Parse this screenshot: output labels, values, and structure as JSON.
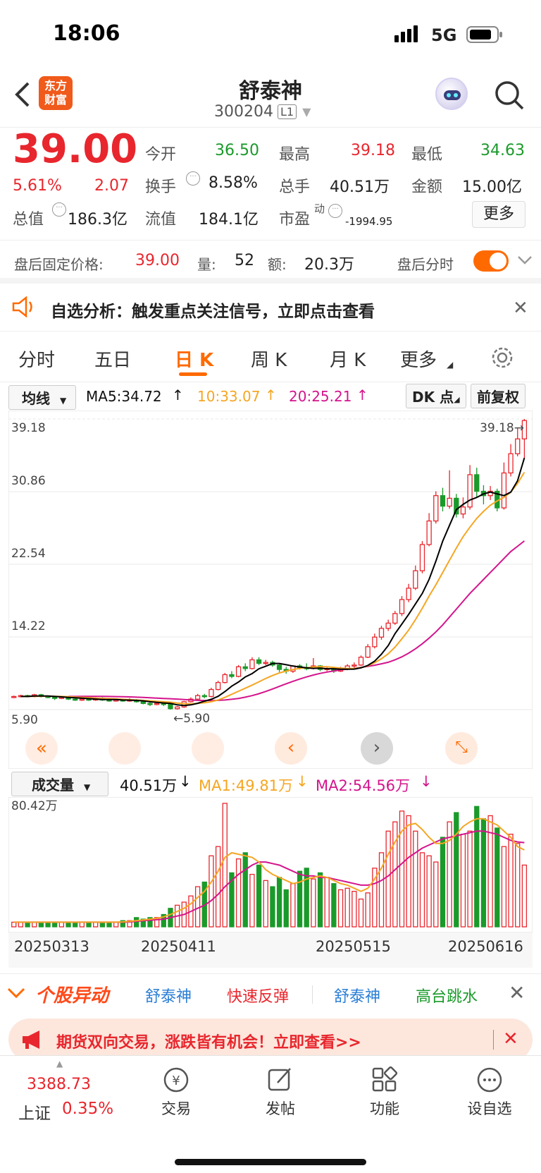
{
  "status": {
    "time": "18:06",
    "network": "5G"
  },
  "header": {
    "title": "舒泰神",
    "code": "300204",
    "level": "L1",
    "logo_text": "东方\n财富"
  },
  "quote": {
    "price": "39.00",
    "pct": "5.61%",
    "chg": "2.07",
    "open_label": "今开",
    "open": "36.50",
    "high_label": "最高",
    "high": "39.18",
    "low_label": "最低",
    "low": "34.63",
    "turnover_label": "换手",
    "turnover": "8.58%",
    "vol_label": "总手",
    "vol": "40.51万",
    "amt_label": "金额",
    "amt": "15.00亿",
    "mcap_label": "总值",
    "mcap": "186.3亿",
    "float_label": "流值",
    "float": "184.1亿",
    "pe_label": "市盈",
    "pe_sup": "动",
    "pe": "-1994.95",
    "more": "更多"
  },
  "afterhours": {
    "label": "盘后固定价格:",
    "price": "39.00",
    "vol_label": "量:",
    "vol": "52",
    "amt_label": "额:",
    "amt": "20.3万",
    "toggle_label": "盘后分时",
    "toggle_on": true
  },
  "notice": {
    "text": "自选分析：触发重点关注信号，立即点击查看"
  },
  "tabs": [
    {
      "label": "分时"
    },
    {
      "label": "五日"
    },
    {
      "label": "日 K",
      "active": true
    },
    {
      "label": "周 K"
    },
    {
      "label": "月 K"
    },
    {
      "label": "更多"
    }
  ],
  "ma_bar": {
    "selector": "均线",
    "ma5": "MA5:34.72",
    "ma10": "10:33.07",
    "ma20": "20:25.21",
    "dk": "DK 点",
    "fq": "前复权"
  },
  "kline": {
    "y_labels": [
      "39.18",
      "30.86",
      "22.54",
      "14.22",
      "5.90"
    ],
    "high_mark": "39.18",
    "low_mark": "5.90"
  },
  "vol_bar": {
    "selector": "成交量",
    "vol": "40.51万",
    "ma1": "MA1:49.81万",
    "ma2": "MA2:54.56万",
    "max": "80.42万"
  },
  "dates": [
    "20250313",
    "20250411",
    "20250515",
    "20250616"
  ],
  "movers": {
    "label": "个股异动",
    "items": [
      {
        "name": "舒泰神",
        "tag": "快速反弹"
      },
      {
        "name": "舒泰神",
        "tag": "高台跳水"
      }
    ]
  },
  "ad": {
    "text": "期货双向交易，涨跌皆有机会！立即查看>>"
  },
  "bottom": {
    "index_value": "3388.73",
    "index_name": "上证",
    "index_pct": "0.35%",
    "items": [
      {
        "label": "交易",
        "icon": "yen-icon"
      },
      {
        "label": "发帖",
        "icon": "edit-icon"
      },
      {
        "label": "功能",
        "icon": "grid-icon"
      },
      {
        "label": "设自选",
        "icon": "more-icon"
      }
    ]
  },
  "colors": {
    "up": "#e8262d",
    "down": "#1a9a2a",
    "accent": "#ff6a00",
    "ma5": "#000000",
    "ma10": "#f5a623",
    "ma20": "#d4148c"
  },
  "chart_data": {
    "type": "candlestick",
    "ylim": [
      5.9,
      39.18
    ],
    "candles": [
      {
        "o": 7.3,
        "c": 7.4,
        "h": 7.5,
        "l": 7.2
      },
      {
        "o": 7.4,
        "c": 7.5,
        "h": 7.6,
        "l": 7.3
      },
      {
        "o": 7.5,
        "c": 7.4,
        "h": 7.6,
        "l": 7.3
      },
      {
        "o": 7.4,
        "c": 7.6,
        "h": 7.7,
        "l": 7.3
      },
      {
        "o": 7.6,
        "c": 7.4,
        "h": 7.7,
        "l": 7.3
      },
      {
        "o": 7.4,
        "c": 7.3,
        "h": 7.5,
        "l": 7.2
      },
      {
        "o": 7.3,
        "c": 7.2,
        "h": 7.4,
        "l": 7.0
      },
      {
        "o": 7.2,
        "c": 7.3,
        "h": 7.4,
        "l": 7.1
      },
      {
        "o": 7.3,
        "c": 7.1,
        "h": 7.4,
        "l": 7.0
      },
      {
        "o": 7.1,
        "c": 7.0,
        "h": 7.2,
        "l": 6.9
      },
      {
        "o": 7.0,
        "c": 7.1,
        "h": 7.2,
        "l": 6.9
      },
      {
        "o": 7.1,
        "c": 7.0,
        "h": 7.2,
        "l": 6.9
      },
      {
        "o": 7.0,
        "c": 7.2,
        "h": 7.3,
        "l": 6.9
      },
      {
        "o": 7.2,
        "c": 7.0,
        "h": 7.3,
        "l": 6.9
      },
      {
        "o": 7.0,
        "c": 6.9,
        "h": 7.1,
        "l": 6.8
      },
      {
        "o": 6.9,
        "c": 7.0,
        "h": 7.1,
        "l": 6.8
      },
      {
        "o": 7.0,
        "c": 6.9,
        "h": 7.1,
        "l": 6.8
      },
      {
        "o": 6.9,
        "c": 7.0,
        "h": 7.2,
        "l": 6.8
      },
      {
        "o": 7.0,
        "c": 6.8,
        "h": 7.1,
        "l": 6.7
      },
      {
        "o": 6.8,
        "c": 6.6,
        "h": 6.9,
        "l": 6.5
      },
      {
        "o": 6.6,
        "c": 6.5,
        "h": 6.8,
        "l": 6.3
      },
      {
        "o": 6.5,
        "c": 6.6,
        "h": 6.7,
        "l": 6.4
      },
      {
        "o": 6.6,
        "c": 6.5,
        "h": 6.7,
        "l": 6.3
      },
      {
        "o": 6.6,
        "c": 6.0,
        "h": 6.7,
        "l": 5.9
      },
      {
        "o": 6.0,
        "c": 6.2,
        "h": 6.3,
        "l": 5.9
      },
      {
        "o": 6.2,
        "c": 6.8,
        "h": 6.9,
        "l": 6.1
      },
      {
        "o": 6.8,
        "c": 7.1,
        "h": 7.3,
        "l": 6.7
      },
      {
        "o": 7.1,
        "c": 7.5,
        "h": 7.7,
        "l": 7.0
      },
      {
        "o": 7.5,
        "c": 7.4,
        "h": 7.7,
        "l": 7.2
      },
      {
        "o": 7.4,
        "c": 8.2,
        "h": 8.4,
        "l": 7.3
      },
      {
        "o": 8.2,
        "c": 9.0,
        "h": 9.2,
        "l": 8.1
      },
      {
        "o": 9.0,
        "c": 9.9,
        "h": 10.1,
        "l": 8.9
      },
      {
        "o": 9.9,
        "c": 9.7,
        "h": 10.3,
        "l": 9.5
      },
      {
        "o": 9.7,
        "c": 10.8,
        "h": 11.0,
        "l": 9.6
      },
      {
        "o": 10.8,
        "c": 10.6,
        "h": 11.2,
        "l": 10.3
      },
      {
        "o": 10.6,
        "c": 11.6,
        "h": 11.9,
        "l": 10.5
      },
      {
        "o": 11.6,
        "c": 11.2,
        "h": 11.9,
        "l": 11.0
      },
      {
        "o": 11.2,
        "c": 11.3,
        "h": 11.6,
        "l": 11.0
      },
      {
        "o": 11.3,
        "c": 11.0,
        "h": 11.5,
        "l": 10.8
      },
      {
        "o": 11.0,
        "c": 10.5,
        "h": 11.1,
        "l": 10.2
      },
      {
        "o": 10.5,
        "c": 10.3,
        "h": 10.8,
        "l": 10.0
      },
      {
        "o": 10.3,
        "c": 10.9,
        "h": 11.0,
        "l": 10.1
      },
      {
        "o": 10.9,
        "c": 10.7,
        "h": 11.1,
        "l": 10.5
      },
      {
        "o": 10.7,
        "c": 10.6,
        "h": 11.2,
        "l": 10.4
      },
      {
        "o": 10.6,
        "c": 10.9,
        "h": 11.8,
        "l": 10.5
      },
      {
        "o": 10.9,
        "c": 10.5,
        "h": 11.0,
        "l": 10.3
      },
      {
        "o": 10.5,
        "c": 10.6,
        "h": 10.8,
        "l": 10.3
      },
      {
        "o": 10.6,
        "c": 10.3,
        "h": 10.8,
        "l": 10.1
      },
      {
        "o": 10.3,
        "c": 10.6,
        "h": 10.8,
        "l": 10.2
      },
      {
        "o": 10.6,
        "c": 10.9,
        "h": 11.1,
        "l": 10.4
      },
      {
        "o": 10.9,
        "c": 11.0,
        "h": 11.3,
        "l": 10.7
      },
      {
        "o": 11.0,
        "c": 11.9,
        "h": 12.1,
        "l": 10.9
      },
      {
        "o": 11.9,
        "c": 13.1,
        "h": 13.4,
        "l": 11.8
      },
      {
        "o": 13.1,
        "c": 14.2,
        "h": 14.6,
        "l": 12.9
      },
      {
        "o": 14.2,
        "c": 15.2,
        "h": 15.5,
        "l": 13.9
      },
      {
        "o": 15.2,
        "c": 15.8,
        "h": 16.2,
        "l": 14.9
      },
      {
        "o": 15.8,
        "c": 16.9,
        "h": 17.2,
        "l": 15.6
      },
      {
        "o": 16.9,
        "c": 18.5,
        "h": 18.9,
        "l": 16.6
      },
      {
        "o": 18.5,
        "c": 19.8,
        "h": 20.3,
        "l": 18.2
      },
      {
        "o": 19.8,
        "c": 21.8,
        "h": 22.4,
        "l": 19.6
      },
      {
        "o": 21.8,
        "c": 24.8,
        "h": 25.2,
        "l": 21.5
      },
      {
        "o": 24.8,
        "c": 27.5,
        "h": 28.4,
        "l": 24.6
      },
      {
        "o": 27.5,
        "c": 30.4,
        "h": 30.9,
        "l": 27.2
      },
      {
        "o": 30.4,
        "c": 29.2,
        "h": 31.3,
        "l": 28.6
      },
      {
        "o": 29.2,
        "c": 30.1,
        "h": 33.3,
        "l": 28.9
      },
      {
        "o": 30.1,
        "c": 28.3,
        "h": 30.6,
        "l": 27.9
      },
      {
        "o": 28.3,
        "c": 29.1,
        "h": 30.2,
        "l": 27.8
      },
      {
        "o": 29.1,
        "c": 32.8,
        "h": 33.9,
        "l": 28.8
      },
      {
        "o": 32.8,
        "c": 30.9,
        "h": 33.6,
        "l": 30.2
      },
      {
        "o": 30.9,
        "c": 30.4,
        "h": 31.6,
        "l": 29.4
      },
      {
        "o": 30.4,
        "c": 30.9,
        "h": 31.5,
        "l": 29.9
      },
      {
        "o": 30.9,
        "c": 29.0,
        "h": 31.2,
        "l": 28.6
      },
      {
        "o": 29.0,
        "c": 33.0,
        "h": 34.2,
        "l": 28.8
      },
      {
        "o": 33.0,
        "c": 35.2,
        "h": 36.3,
        "l": 32.6
      },
      {
        "o": 35.2,
        "c": 36.9,
        "h": 38.1,
        "l": 34.9
      },
      {
        "o": 36.9,
        "c": 39.0,
        "h": 39.18,
        "l": 34.63
      }
    ],
    "volumes": [
      3,
      3,
      3,
      3,
      2.5,
      3,
      3,
      3,
      2.5,
      3,
      3,
      3,
      3,
      3,
      3,
      3,
      4,
      4,
      6,
      5,
      6,
      6,
      8,
      12,
      14,
      16,
      20,
      26,
      29,
      46,
      52,
      80,
      35,
      44,
      48,
      34,
      40,
      30,
      26,
      32,
      24,
      28,
      36,
      38,
      31,
      35,
      32,
      28,
      24,
      25,
      23,
      18,
      22,
      38,
      48,
      62,
      68,
      75,
      72,
      62,
      48,
      46,
      42,
      58,
      68,
      74,
      60,
      62,
      78,
      70,
      72,
      64,
      52,
      60,
      54,
      40
    ],
    "vol_colors": "up-red-down-green",
    "ma5_line": [
      7.4,
      7.4,
      7.45,
      7.45,
      7.45,
      7.4,
      7.35,
      7.3,
      7.25,
      7.2,
      7.15,
      7.1,
      7.05,
      7.05,
      7.05,
      7.0,
      6.98,
      6.95,
      6.9,
      6.8,
      6.72,
      6.66,
      6.6,
      6.44,
      6.36,
      6.44,
      6.62,
      6.86,
      7.08,
      7.42,
      7.96,
      8.58,
      9.06,
      9.64,
      10.02,
      10.58,
      10.86,
      11.18,
      11.18,
      11.04,
      10.88,
      10.78,
      10.68,
      10.62,
      10.64,
      10.58,
      10.58,
      10.52,
      10.52,
      10.54,
      10.68,
      10.96,
      11.44,
      12.24,
      13.24,
      14.6,
      15.7,
      16.8,
      18.0,
      19.2,
      20.8,
      22.9,
      25.2,
      27.0,
      28.8,
      29.4,
      29.9,
      30.2,
      30.6,
      30.8,
      30.6,
      30.4,
      30.8,
      32.1,
      34.72
    ],
    "ma10_line": [
      7.4,
      7.4,
      7.42,
      7.43,
      7.44,
      7.42,
      7.4,
      7.37,
      7.33,
      7.3,
      7.27,
      7.22,
      7.18,
      7.15,
      7.12,
      7.08,
      7.04,
      7.0,
      6.95,
      6.9,
      6.85,
      6.8,
      6.75,
      6.65,
      6.58,
      6.55,
      6.6,
      6.68,
      6.8,
      7.0,
      7.3,
      7.65,
      8.0,
      8.35,
      8.7,
      9.08,
      9.46,
      9.8,
      10.1,
      10.3,
      10.5,
      10.62,
      10.7,
      10.78,
      10.82,
      10.8,
      10.72,
      10.66,
      10.6,
      10.6,
      10.7,
      10.92,
      11.26,
      11.72,
      12.3,
      13.06,
      14.0,
      15.0,
      16.2,
      17.5,
      18.9,
      20.2,
      21.6,
      23.0,
      24.4,
      25.7,
      26.8,
      27.8,
      28.6,
      29.3,
      29.8,
      30.2,
      30.8,
      31.8,
      33.07
    ],
    "ma20_line": [
      7.4,
      7.4,
      7.41,
      7.41,
      7.42,
      7.41,
      7.4,
      7.39,
      7.37,
      7.35,
      7.32,
      7.29,
      7.26,
      7.22,
      7.18,
      7.14,
      7.1,
      7.05,
      7.0,
      6.96,
      6.94,
      6.94,
      6.96,
      7.0,
      7.08,
      7.18,
      7.32,
      7.5,
      7.72,
      7.98,
      8.26,
      8.56,
      8.86,
      9.14,
      9.4,
      9.64,
      9.86,
      10.04,
      10.2,
      10.32,
      10.44,
      10.54,
      10.62,
      10.72,
      10.84,
      10.98,
      11.14,
      11.32,
      11.6,
      11.94,
      12.36,
      12.86,
      13.44,
      14.08,
      14.8,
      15.6,
      16.5,
      17.4,
      18.3,
      19.2,
      20.0,
      20.8,
      21.6,
      22.4,
      23.2,
      24.0,
      24.6,
      25.21
    ],
    "vol_ma1": [
      3,
      3,
      3,
      3,
      3,
      3,
      3,
      3,
      3,
      3,
      3,
      3,
      3,
      3,
      3,
      3,
      3.2,
      3.5,
      4,
      4.5,
      5,
      5.5,
      6.5,
      8,
      10,
      12,
      15,
      19,
      23,
      29,
      36,
      45,
      48,
      47,
      46,
      45,
      42,
      37,
      34,
      32,
      30,
      28,
      29,
      31,
      32,
      33,
      32,
      30,
      28,
      27,
      25,
      23,
      25,
      31,
      38,
      47,
      55,
      62,
      66,
      67,
      63,
      58,
      54,
      54,
      56,
      60,
      65,
      68,
      70,
      70,
      68,
      66,
      62,
      58,
      52,
      49.81
    ],
    "vol_ma2": [
      3,
      3,
      3,
      3,
      3,
      3,
      3,
      3,
      3,
      3,
      3,
      3,
      3,
      3,
      3,
      3,
      3,
      3.2,
      3.5,
      4,
      4.3,
      4.6,
      5,
      6,
      7,
      8,
      10,
      12,
      14,
      17,
      21,
      26,
      30,
      34,
      37,
      40,
      42,
      42,
      41,
      40,
      38,
      36,
      34,
      33,
      33,
      32,
      32,
      31,
      30,
      29,
      28,
      27,
      27,
      28,
      30,
      33,
      37,
      41,
      45,
      48,
      51,
      53,
      55,
      57,
      58,
      59,
      60,
      61,
      62,
      62,
      61,
      60,
      58,
      56,
      55,
      54.56
    ]
  }
}
